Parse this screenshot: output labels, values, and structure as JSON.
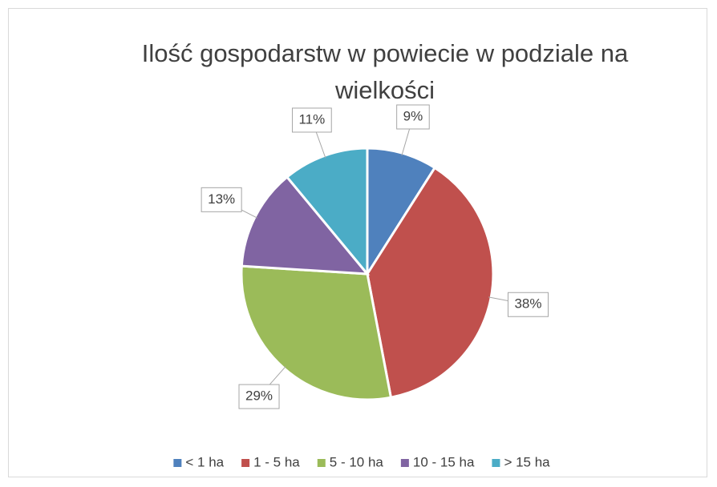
{
  "chart_data": {
    "type": "pie",
    "title": "Ilość gospodarstw w powiecie w podziale na wielkości",
    "categories": [
      "< 1 ha",
      "1 - 5 ha",
      "5 - 10 ha",
      "10 - 15 ha",
      "> 15 ha"
    ],
    "values": [
      9,
      38,
      29,
      13,
      11
    ],
    "value_labels": [
      "9%",
      "38%",
      "29%",
      "13%",
      "11%"
    ],
    "colors": [
      "#4f81bd",
      "#c0504d",
      "#9bbb59",
      "#8064a2",
      "#4bacc6"
    ],
    "legend": "bottom"
  }
}
